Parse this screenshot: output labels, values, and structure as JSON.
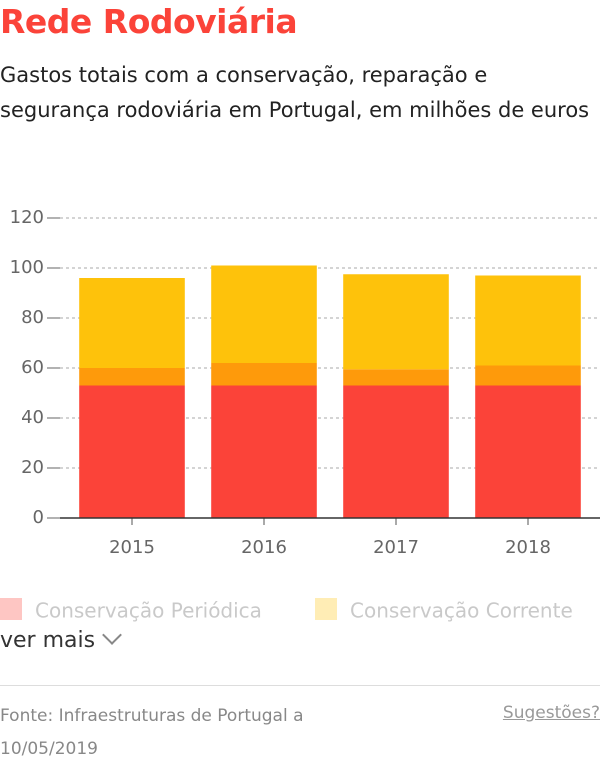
{
  "chart_data": {
    "type": "stacked_bar",
    "title": "Rede Rodoviária",
    "subtitle": "Gastos totais com a conservação, reparação e segurança rodoviária em Portugal, em milhões de euros",
    "categories": [
      "2015",
      "2016",
      "2017",
      "2018"
    ],
    "series": [
      {
        "name": "Conservação Periódica",
        "color": "#fb4339",
        "values": [
          53,
          53,
          53,
          53
        ]
      },
      {
        "color": "#fe9a0b",
        "values": [
          7,
          9,
          6.5,
          8
        ]
      },
      {
        "name": "Conservação Corrente",
        "color": "#fec20b",
        "values": [
          36,
          39,
          38,
          36
        ]
      }
    ],
    "ylim": [
      0,
      120
    ],
    "yticks": [
      0,
      20,
      40,
      60,
      80,
      100,
      120
    ],
    "grid": true,
    "more": "ver mais",
    "source": "Fonte: Infraestruturas de Portugal a 10/05/2019",
    "feedback": "Sugestões?"
  }
}
